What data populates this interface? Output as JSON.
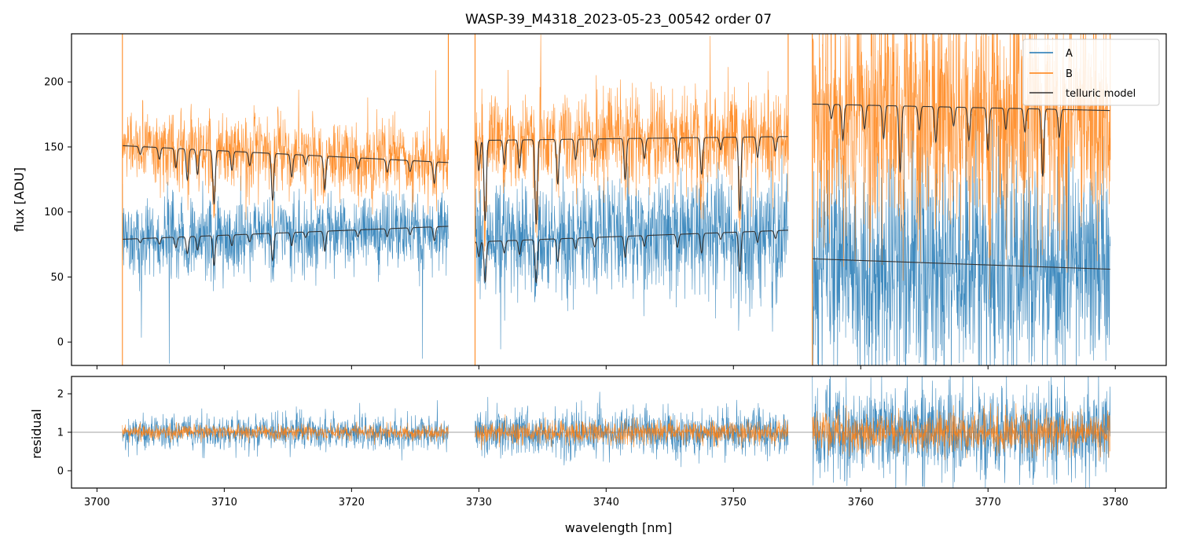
{
  "title": "WASP-39_M4318_2023-05-23_00542  order 07",
  "colors": {
    "A": "#1f77b4",
    "B": "#ff7f0e",
    "telluric": "#333333",
    "refline": "#808080"
  },
  "chart_data": [
    {
      "panel": "flux",
      "type": "line",
      "ylabel": "flux [ADU]",
      "xlabel": "",
      "xlim": [
        3698,
        3784
      ],
      "ylim": [
        -18,
        237
      ],
      "xticks": [
        3700,
        3710,
        3720,
        3730,
        3740,
        3750,
        3760,
        3770,
        3780
      ],
      "yticks": [
        0,
        50,
        100,
        150,
        200
      ],
      "ytick_labels": [
        "0",
        "50",
        "100",
        "150",
        "200"
      ],
      "legend_position": "top-right",
      "legend": [
        "A",
        "B",
        "telluric model"
      ],
      "segments": [
        {
          "x_range": [
            3702.0,
            3727.6
          ],
          "A_mean_start": 80,
          "A_mean_end": 88,
          "A_noise": 15,
          "B_mean_start": 153,
          "B_mean_end": 140,
          "B_noise": 14,
          "telluric_A": {
            "start": 79,
            "end": 89
          },
          "telluric_B": {
            "start": 151,
            "end": 138
          },
          "absorption_lines": [
            {
              "x": 3703.4,
              "depth": 0.04
            },
            {
              "x": 3704.9,
              "depth": 0.06
            },
            {
              "x": 3706.2,
              "depth": 0.1
            },
            {
              "x": 3707.1,
              "depth": 0.16
            },
            {
              "x": 3707.9,
              "depth": 0.13
            },
            {
              "x": 3709.2,
              "depth": 0.28
            },
            {
              "x": 3710.6,
              "depth": 0.1
            },
            {
              "x": 3712.0,
              "depth": 0.07
            },
            {
              "x": 3713.8,
              "depth": 0.25
            },
            {
              "x": 3715.3,
              "depth": 0.12
            },
            {
              "x": 3716.4,
              "depth": 0.05
            },
            {
              "x": 3717.9,
              "depth": 0.18
            },
            {
              "x": 3720.5,
              "depth": 0.06
            },
            {
              "x": 3722.8,
              "depth": 0.07
            },
            {
              "x": 3724.6,
              "depth": 0.06
            },
            {
              "x": 3726.5,
              "depth": 0.12
            }
          ]
        },
        {
          "x_range": [
            3729.7,
            3754.3
          ],
          "A_mean_start": 82,
          "A_mean_end": 85,
          "A_noise": 22,
          "B_mean_start": 158,
          "B_mean_end": 158,
          "B_noise": 18,
          "telluric_A": {
            "start": 77,
            "end": 86
          },
          "telluric_B": {
            "start": 155,
            "end": 158
          },
          "absorption_lines": [
            {
              "x": 3730.0,
              "depth": 0.15
            },
            {
              "x": 3730.5,
              "depth": 0.4
            },
            {
              "x": 3732.0,
              "depth": 0.12
            },
            {
              "x": 3733.2,
              "depth": 0.14
            },
            {
              "x": 3734.5,
              "depth": 0.42
            },
            {
              "x": 3736.2,
              "depth": 0.22
            },
            {
              "x": 3737.6,
              "depth": 0.1
            },
            {
              "x": 3739.1,
              "depth": 0.09
            },
            {
              "x": 3741.5,
              "depth": 0.2
            },
            {
              "x": 3743.0,
              "depth": 0.1
            },
            {
              "x": 3745.6,
              "depth": 0.12
            },
            {
              "x": 3747.5,
              "depth": 0.18
            },
            {
              "x": 3749.0,
              "depth": 0.06
            },
            {
              "x": 3750.5,
              "depth": 0.36
            },
            {
              "x": 3751.9,
              "depth": 0.1
            },
            {
              "x": 3753.3,
              "depth": 0.07
            }
          ]
        },
        {
          "x_range": [
            3756.2,
            3779.6
          ],
          "A_mean_start": 60,
          "A_mean_end": 58,
          "A_noise": 45,
          "B_mean_start": 182,
          "B_mean_end": 178,
          "B_noise": 45,
          "telluric_A": {
            "start": 64,
            "end": 56
          },
          "telluric_B": {
            "start": 183,
            "end": 178
          },
          "absorption_lines_B_only": [
            {
              "x": 3757.7,
              "depth": 0.06
            },
            {
              "x": 3758.6,
              "depth": 0.15
            },
            {
              "x": 3760.3,
              "depth": 0.1
            },
            {
              "x": 3761.8,
              "depth": 0.14
            },
            {
              "x": 3763.1,
              "depth": 0.28
            },
            {
              "x": 3764.6,
              "depth": 0.1
            },
            {
              "x": 3765.9,
              "depth": 0.15
            },
            {
              "x": 3767.3,
              "depth": 0.08
            },
            {
              "x": 3768.5,
              "depth": 0.14
            },
            {
              "x": 3770.0,
              "depth": 0.18
            },
            {
              "x": 3771.4,
              "depth": 0.09
            },
            {
              "x": 3772.9,
              "depth": 0.1
            },
            {
              "x": 3774.3,
              "depth": 0.29
            },
            {
              "x": 3775.6,
              "depth": 0.12
            }
          ]
        }
      ]
    },
    {
      "panel": "residual",
      "type": "line",
      "ylabel": "residual",
      "xlabel": "wavelength [nm]",
      "xlim": [
        3698,
        3784
      ],
      "ylim": [
        -0.45,
        2.45
      ],
      "xticks": [
        3700,
        3710,
        3720,
        3730,
        3740,
        3750,
        3760,
        3770,
        3780
      ],
      "xtick_labels": [
        "3700",
        "3710",
        "3720",
        "3730",
        "3740",
        "3750",
        "3760",
        "3770",
        "3780"
      ],
      "yticks": [
        0,
        1,
        2
      ],
      "ytick_labels": [
        "0",
        "1",
        "2"
      ],
      "reference_line": 1,
      "segments": [
        {
          "x_range": [
            3702.0,
            3727.6
          ],
          "A_noise": 0.22,
          "B_noise": 0.1
        },
        {
          "x_range": [
            3729.7,
            3754.3
          ],
          "A_noise": 0.3,
          "B_noise": 0.15
        },
        {
          "x_range": [
            3756.2,
            3779.6
          ],
          "A_noise": 0.6,
          "B_noise": 0.25
        }
      ]
    }
  ]
}
